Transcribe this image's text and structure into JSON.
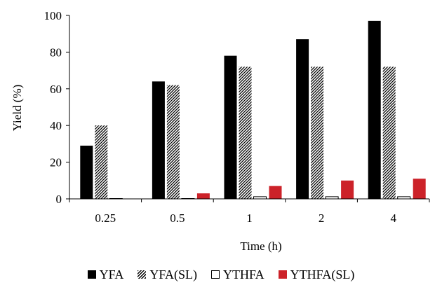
{
  "chart_data": {
    "type": "bar",
    "title": "",
    "xlabel": "Time  (h)",
    "ylabel": "Yield  (%)",
    "ylim": [
      0,
      100
    ],
    "yticks": [
      "0",
      "20",
      "40",
      "60",
      "80",
      "100"
    ],
    "categories": [
      "0.25",
      "0.5",
      "1",
      "2",
      "4"
    ],
    "grid": false,
    "legend_position": "bottom",
    "series": [
      {
        "name": "YFA",
        "values": [
          29,
          64,
          78,
          87,
          97
        ],
        "color": "#000000",
        "pattern": "solid"
      },
      {
        "name": "YFA(SL)",
        "values": [
          40,
          62,
          72,
          72,
          72
        ],
        "color": "#000000",
        "pattern": "hatch"
      },
      {
        "name": "YTHFA",
        "values": [
          0,
          0,
          1,
          1,
          1
        ],
        "color": "#ffffff",
        "pattern": "hollow"
      },
      {
        "name": "YTHFA(SL)",
        "values": [
          0,
          3,
          7,
          10,
          11
        ],
        "color": "#cc2229",
        "pattern": "solid"
      }
    ]
  }
}
